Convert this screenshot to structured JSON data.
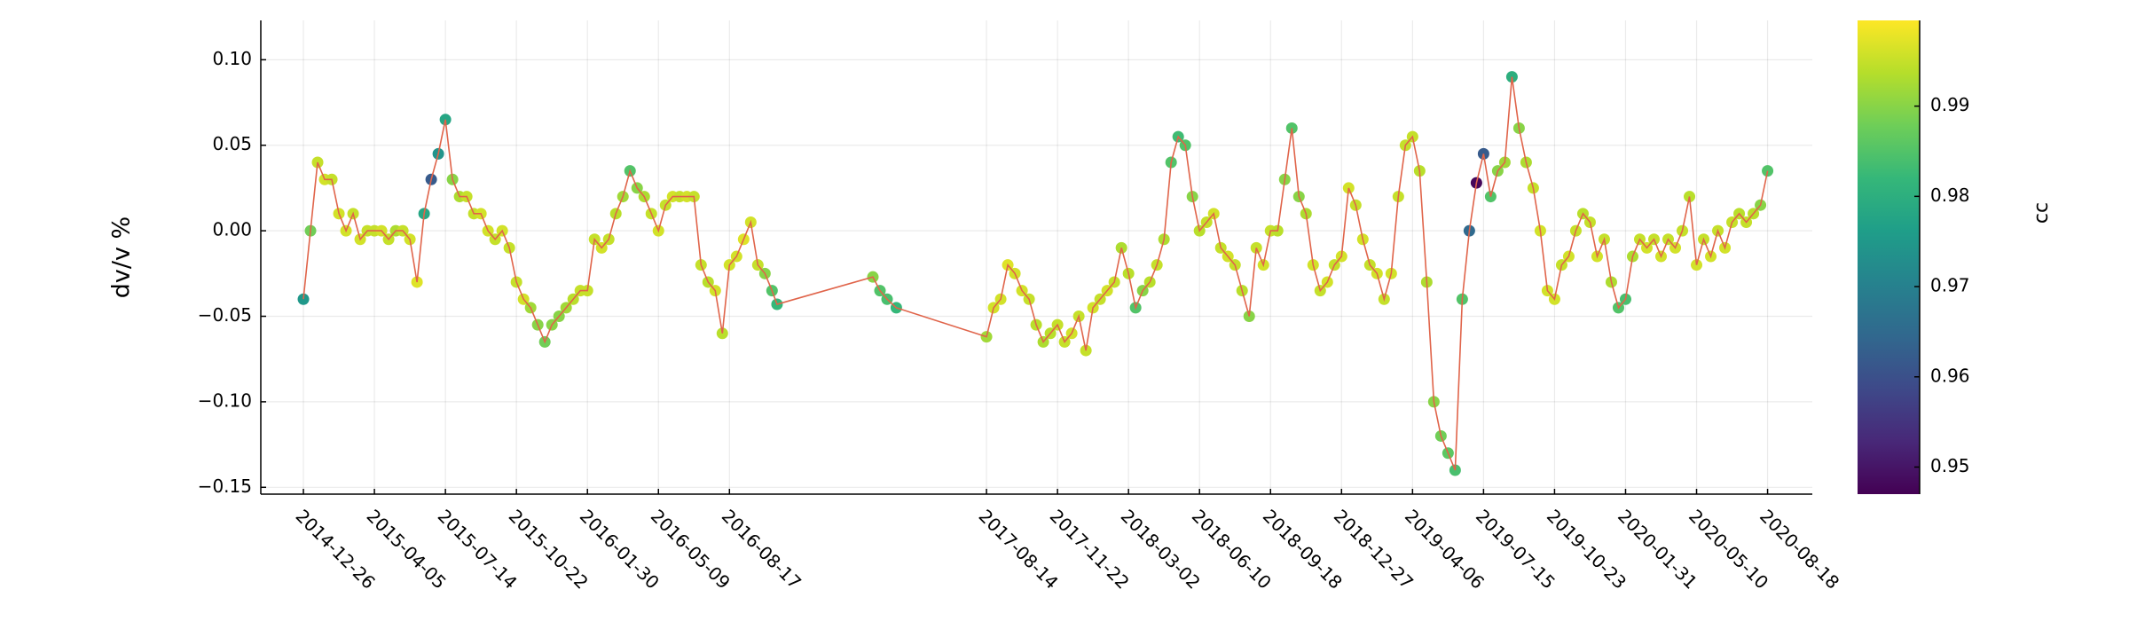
{
  "chart_data": {
    "type": "line",
    "ylabel": "dv/v %",
    "xlim": [
      "2014-10-27",
      "2020-10-20"
    ],
    "xticks": [
      "2014-12-26",
      "2015-04-05",
      "2015-07-14",
      "2015-10-22",
      "2016-01-30",
      "2016-05-09",
      "2016-08-17",
      "2017-08-14",
      "2017-11-22",
      "2018-03-02",
      "2018-06-10",
      "2018-09-18",
      "2018-12-27",
      "2019-04-06",
      "2019-07-15",
      "2019-10-23",
      "2020-01-31",
      "2020-05-10",
      "2020-08-18"
    ],
    "ylim": [
      -0.154,
      0.123
    ],
    "yticks": [
      {
        "value": 0.1,
        "label": "0.10"
      },
      {
        "value": 0.05,
        "label": "0.05"
      },
      {
        "value": 0,
        "label": "0.00"
      },
      {
        "value": -0.05,
        "label": "−0.05"
      },
      {
        "value": -0.1,
        "label": "−0.10"
      },
      {
        "value": -0.15,
        "label": "−0.15"
      }
    ],
    "grid": true,
    "x": [
      "2014-12-26",
      "2015-01-05",
      "2015-01-15",
      "2015-01-25",
      "2015-02-04",
      "2015-02-14",
      "2015-02-24",
      "2015-03-06",
      "2015-03-16",
      "2015-03-26",
      "2015-04-05",
      "2015-04-15",
      "2015-04-25",
      "2015-05-05",
      "2015-05-15",
      "2015-05-25",
      "2015-06-04",
      "2015-06-14",
      "2015-06-24",
      "2015-07-04",
      "2015-07-14",
      "2015-07-24",
      "2015-08-03",
      "2015-08-13",
      "2015-08-23",
      "2015-09-02",
      "2015-09-12",
      "2015-09-22",
      "2015-10-02",
      "2015-10-12",
      "2015-10-22",
      "2015-11-01",
      "2015-11-11",
      "2015-11-21",
      "2015-12-01",
      "2015-12-11",
      "2015-12-21",
      "2015-12-31",
      "2016-01-10",
      "2016-01-20",
      "2016-01-30",
      "2016-02-09",
      "2016-02-19",
      "2016-02-29",
      "2016-03-10",
      "2016-03-20",
      "2016-03-30",
      "2016-04-09",
      "2016-04-19",
      "2016-04-29",
      "2016-05-09",
      "2016-05-19",
      "2016-05-29",
      "2016-06-08",
      "2016-06-18",
      "2016-06-28",
      "2016-07-08",
      "2016-07-18",
      "2016-07-28",
      "2016-08-07",
      "2016-08-17",
      "2016-08-27",
      "2016-09-06",
      "2016-09-16",
      "2016-09-26",
      "2016-10-06",
      "2016-10-16",
      "2016-10-23",
      "2017-03-07",
      "2017-03-17",
      "2017-03-27",
      "2017-04-09",
      "2017-08-14",
      "2017-08-24",
      "2017-09-03",
      "2017-09-13",
      "2017-09-23",
      "2017-10-03",
      "2017-10-13",
      "2017-10-23",
      "2017-11-02",
      "2017-11-12",
      "2017-11-22",
      "2017-12-02",
      "2017-12-12",
      "2017-12-22",
      "2018-01-01",
      "2018-01-11",
      "2018-01-21",
      "2018-01-31",
      "2018-02-10",
      "2018-02-20",
      "2018-03-02",
      "2018-03-12",
      "2018-03-22",
      "2018-04-01",
      "2018-04-11",
      "2018-04-21",
      "2018-05-01",
      "2018-05-11",
      "2018-05-21",
      "2018-05-31",
      "2018-06-10",
      "2018-06-20",
      "2018-06-30",
      "2018-07-10",
      "2018-07-20",
      "2018-07-30",
      "2018-08-09",
      "2018-08-19",
      "2018-08-29",
      "2018-09-08",
      "2018-09-18",
      "2018-09-28",
      "2018-10-08",
      "2018-10-18",
      "2018-10-28",
      "2018-11-07",
      "2018-11-17",
      "2018-11-27",
      "2018-12-07",
      "2018-12-17",
      "2018-12-27",
      "2019-01-06",
      "2019-01-16",
      "2019-01-26",
      "2019-02-05",
      "2019-02-15",
      "2019-02-25",
      "2019-03-07",
      "2019-03-17",
      "2019-03-27",
      "2019-04-06",
      "2019-04-16",
      "2019-04-26",
      "2019-05-06",
      "2019-05-16",
      "2019-05-26",
      "2019-06-05",
      "2019-06-15",
      "2019-06-25",
      "2019-07-05",
      "2019-07-15",
      "2019-07-25",
      "2019-08-04",
      "2019-08-14",
      "2019-08-24",
      "2019-09-03",
      "2019-09-13",
      "2019-09-23",
      "2019-10-03",
      "2019-10-13",
      "2019-10-23",
      "2019-11-02",
      "2019-11-12",
      "2019-11-22",
      "2019-12-02",
      "2019-12-12",
      "2019-12-22",
      "2020-01-01",
      "2020-01-11",
      "2020-01-21",
      "2020-01-31",
      "2020-02-10",
      "2020-02-20",
      "2020-03-01",
      "2020-03-11",
      "2020-03-21",
      "2020-03-31",
      "2020-04-10",
      "2020-04-20",
      "2020-04-30",
      "2020-05-10",
      "2020-05-20",
      "2020-05-30",
      "2020-06-09",
      "2020-06-19",
      "2020-06-29",
      "2020-07-09",
      "2020-07-19",
      "2020-07-29",
      "2020-08-08",
      "2020-08-18"
    ],
    "series": [
      {
        "line_color": "#e0644a",
        "values": [
          -0.04,
          0.0,
          0.04,
          0.03,
          0.03,
          0.01,
          0.0,
          0.01,
          -0.005,
          0.0,
          0.0,
          0.0,
          -0.005,
          0.0,
          0.0,
          -0.005,
          -0.03,
          0.01,
          0.03,
          0.045,
          0.065,
          0.03,
          0.02,
          0.02,
          0.01,
          0.01,
          0.0,
          -0.005,
          0.0,
          -0.01,
          -0.03,
          -0.04,
          -0.045,
          -0.055,
          -0.065,
          -0.055,
          -0.05,
          -0.045,
          -0.04,
          -0.035,
          -0.035,
          -0.005,
          -0.01,
          -0.005,
          0.01,
          0.02,
          0.035,
          0.025,
          0.02,
          0.01,
          0.0,
          0.015,
          0.02,
          0.02,
          0.02,
          0.02,
          -0.02,
          -0.03,
          -0.035,
          -0.06,
          -0.02,
          -0.015,
          -0.005,
          0.005,
          -0.02,
          -0.025,
          -0.035,
          -0.043,
          -0.027,
          -0.035,
          -0.04,
          -0.045,
          -0.062,
          -0.045,
          -0.04,
          -0.02,
          -0.025,
          -0.035,
          -0.04,
          -0.055,
          -0.065,
          -0.06,
          -0.055,
          -0.065,
          -0.06,
          -0.05,
          -0.07,
          -0.045,
          -0.04,
          -0.035,
          -0.03,
          -0.01,
          -0.025,
          -0.045,
          -0.035,
          -0.03,
          -0.02,
          -0.005,
          0.04,
          0.055,
          0.05,
          0.02,
          0.0,
          0.005,
          0.01,
          -0.01,
          -0.015,
          -0.02,
          -0.035,
          -0.05,
          -0.01,
          -0.02,
          0.0,
          0.0,
          0.03,
          0.06,
          0.02,
          0.01,
          -0.02,
          -0.035,
          -0.03,
          -0.02,
          -0.015,
          0.025,
          0.015,
          -0.005,
          -0.02,
          -0.025,
          -0.04,
          -0.025,
          0.02,
          0.05,
          0.055,
          0.035,
          -0.03,
          -0.1,
          -0.12,
          -0.13,
          -0.14,
          -0.04,
          0.0,
          0.028,
          0.045,
          0.02,
          0.035,
          0.04,
          0.09,
          0.06,
          0.04,
          0.025,
          0.0,
          -0.035,
          -0.04,
          -0.02,
          -0.015,
          0.0,
          0.01,
          0.005,
          -0.015,
          -0.005,
          -0.03,
          -0.045,
          -0.04,
          -0.015,
          -0.005,
          -0.01,
          -0.005,
          -0.015,
          -0.005,
          -0.01,
          0.0,
          0.02,
          -0.02,
          -0.005,
          -0.015,
          0.0,
          -0.01,
          0.005,
          0.01,
          0.005,
          0.01,
          0.015,
          0.035
        ],
        "color_values": [
          0.975,
          0.988,
          0.995,
          0.996,
          0.995,
          0.996,
          0.996,
          0.995,
          0.996,
          0.995,
          0.995,
          0.996,
          0.995,
          0.993,
          0.995,
          0.996,
          0.997,
          0.978,
          0.962,
          0.974,
          0.978,
          0.99,
          0.993,
          0.995,
          0.995,
          0.996,
          0.996,
          0.995,
          0.996,
          0.995,
          0.995,
          0.996,
          0.992,
          0.99,
          0.988,
          0.99,
          0.99,
          0.992,
          0.994,
          0.995,
          0.995,
          0.995,
          0.996,
          0.995,
          0.994,
          0.992,
          0.985,
          0.99,
          0.993,
          0.995,
          0.996,
          0.995,
          0.996,
          0.995,
          0.996,
          0.995,
          0.995,
          0.994,
          0.996,
          0.994,
          0.996,
          0.996,
          0.997,
          0.996,
          0.995,
          0.99,
          0.985,
          0.982,
          0.99,
          0.985,
          0.984,
          0.982,
          0.992,
          0.996,
          0.996,
          0.997,
          0.996,
          0.996,
          0.995,
          0.994,
          0.993,
          0.994,
          0.995,
          0.995,
          0.996,
          0.995,
          0.995,
          0.996,
          0.995,
          0.996,
          0.995,
          0.993,
          0.994,
          0.985,
          0.99,
          0.994,
          0.995,
          0.993,
          0.985,
          0.983,
          0.985,
          0.99,
          0.994,
          0.995,
          0.996,
          0.995,
          0.996,
          0.995,
          0.994,
          0.99,
          0.995,
          0.996,
          0.995,
          0.994,
          0.99,
          0.985,
          0.99,
          0.993,
          0.996,
          0.995,
          0.996,
          0.995,
          0.996,
          0.996,
          0.995,
          0.996,
          0.995,
          0.996,
          0.995,
          0.996,
          0.995,
          0.995,
          0.995,
          0.994,
          0.993,
          0.99,
          0.988,
          0.986,
          0.984,
          0.985,
          0.965,
          0.948,
          0.962,
          0.985,
          0.99,
          0.992,
          0.98,
          0.99,
          0.993,
          0.995,
          0.996,
          0.996,
          0.996,
          0.995,
          0.996,
          0.995,
          0.994,
          0.995,
          0.996,
          0.995,
          0.993,
          0.985,
          0.984,
          0.993,
          0.995,
          0.996,
          0.995,
          0.996,
          0.995,
          0.996,
          0.995,
          0.994,
          0.996,
          0.995,
          0.996,
          0.995,
          0.996,
          0.995,
          0.994,
          0.995,
          0.994,
          0.99,
          0.985
        ]
      }
    ],
    "colorbar": {
      "label": "cc",
      "colormap": "viridis",
      "lim": [
        0.947,
        0.9995
      ],
      "ticks": [
        0.95,
        0.96,
        0.97,
        0.98,
        0.99
      ]
    }
  }
}
